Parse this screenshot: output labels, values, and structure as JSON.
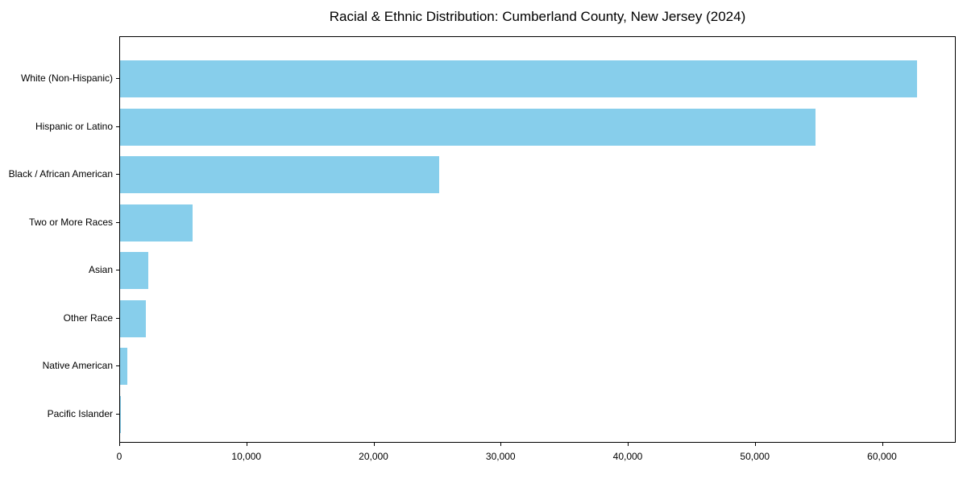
{
  "chart_data": {
    "type": "bar",
    "orientation": "horizontal",
    "title": "Racial & Ethnic Distribution: Cumberland County, New Jersey (2024)",
    "categories": [
      "White (Non-Hispanic)",
      "Hispanic or Latino",
      "Black / African American",
      "Two or More Races",
      "Asian",
      "Other Race",
      "Native American",
      "Pacific Islander"
    ],
    "values": [
      62700,
      54700,
      25100,
      5700,
      2200,
      2000,
      600,
      50
    ],
    "bar_color": "#87CEEB",
    "text_color": "#000000",
    "xlabel": "",
    "ylabel": "",
    "xlim": [
      0,
      65800
    ],
    "xticks": {
      "values": [
        0,
        10000,
        20000,
        30000,
        40000,
        50000,
        60000
      ],
      "labels": [
        "0",
        "10,000",
        "20,000",
        "30,000",
        "40,000",
        "50,000",
        "60,000"
      ]
    },
    "grid": false,
    "legend": "none",
    "background": "#ffffff"
  }
}
